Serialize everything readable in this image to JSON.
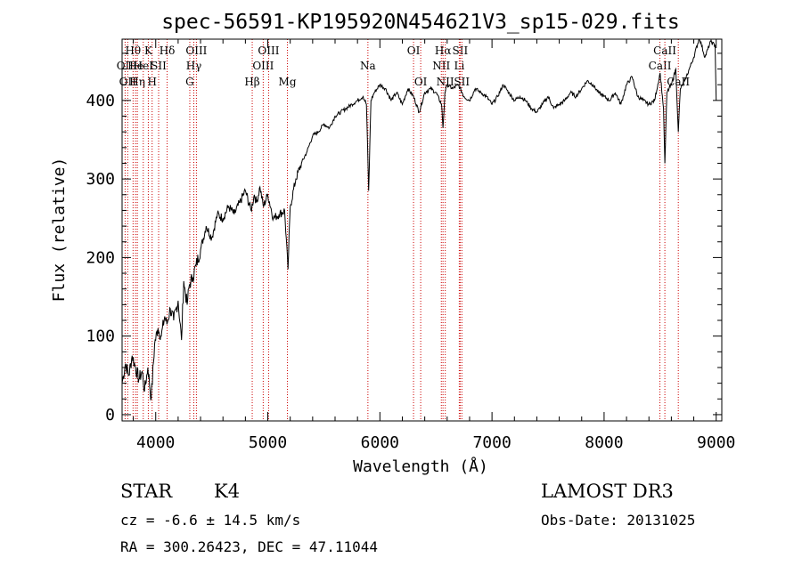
{
  "chart_data": {
    "type": "line",
    "title": "spec-56591-KP195920N454621V3_sp15-029.fits",
    "xlabel": "Wavelength (Å)",
    "ylabel": "Flux (relative)",
    "xlim": [
      3700,
      9050
    ],
    "ylim": [
      -8,
      478
    ],
    "xticks": [
      4000,
      5000,
      6000,
      7000,
      8000,
      9000
    ],
    "yticks": [
      0,
      100,
      200,
      300,
      400
    ],
    "grid": false,
    "series": [
      {
        "x": [
          3700,
          3730,
          3760,
          3790,
          3820,
          3850,
          3880,
          3900,
          3930,
          3960,
          3990,
          4020,
          4050,
          4080,
          4100,
          4130,
          4160,
          4200,
          4230,
          4250,
          4280,
          4300,
          4330,
          4360,
          4400,
          4450,
          4500,
          4550,
          4600,
          4650,
          4700,
          4750,
          4800,
          4850,
          4880,
          4900,
          4930,
          4960,
          5000,
          5050,
          5100,
          5150,
          5180,
          5200,
          5250,
          5300,
          5350,
          5400,
          5450,
          5500,
          5550,
          5600,
          5650,
          5700,
          5750,
          5800,
          5850,
          5880,
          5900,
          5920,
          5950,
          6000,
          6050,
          6100,
          6150,
          6200,
          6250,
          6300,
          6350,
          6400,
          6450,
          6500,
          6550,
          6563,
          6580,
          6600,
          6650,
          6700,
          6750,
          6800,
          6850,
          6900,
          6950,
          7000,
          7050,
          7100,
          7150,
          7200,
          7250,
          7300,
          7350,
          7400,
          7450,
          7500,
          7550,
          7600,
          7650,
          7700,
          7750,
          7800,
          7850,
          7900,
          7950,
          8000,
          8050,
          8100,
          8150,
          8200,
          8250,
          8300,
          8350,
          8400,
          8450,
          8500,
          8530,
          8542,
          8560,
          8600,
          8640,
          8662,
          8680,
          8720,
          8760,
          8800,
          8850,
          8900,
          8950,
          8990,
          9000
        ],
        "y": [
          40,
          65,
          50,
          75,
          60,
          45,
          55,
          30,
          60,
          20,
          90,
          110,
          100,
          125,
          115,
          135,
          120,
          145,
          95,
          170,
          140,
          165,
          175,
          190,
          210,
          240,
          225,
          255,
          250,
          265,
          255,
          270,
          285,
          260,
          280,
          270,
          290,
          265,
          280,
          250,
          255,
          260,
          185,
          265,
          300,
          320,
          335,
          355,
          360,
          370,
          365,
          380,
          385,
          390,
          395,
          400,
          405,
          395,
          285,
          400,
          410,
          420,
          415,
          400,
          410,
          395,
          415,
          405,
          385,
          410,
          415,
          410,
          395,
          365,
          410,
          420,
          415,
          420,
          405,
          400,
          415,
          410,
          405,
          395,
          405,
          420,
          410,
          400,
          405,
          400,
          390,
          385,
          395,
          405,
          390,
          395,
          400,
          410,
          405,
          415,
          425,
          420,
          410,
          405,
          400,
          410,
          395,
          420,
          430,
          405,
          400,
          395,
          400,
          435,
          390,
          320,
          410,
          420,
          440,
          360,
          415,
          425,
          440,
          455,
          480,
          455,
          475,
          470,
          400
        ]
      }
    ],
    "line_markers": [
      {
        "w": 3727,
        "label": "OII",
        "row": 1
      },
      {
        "w": 3750,
        "label": "OII",
        "row": 2
      },
      {
        "w": 3798,
        "label": "Hθ",
        "row": 0
      },
      {
        "w": 3820,
        "label": "He",
        "row": 1
      },
      {
        "w": 3836,
        "label": "Hη",
        "row": 2
      },
      {
        "w": 3889,
        "label": "HeI",
        "row": 1
      },
      {
        "w": 3934,
        "label": "K",
        "row": 0
      },
      {
        "w": 3968,
        "label": "H",
        "row": 2
      },
      {
        "w": 4026,
        "label": "SII",
        "row": 1
      },
      {
        "w": 4102,
        "label": "Hδ",
        "row": 0
      },
      {
        "w": 4304,
        "label": "G",
        "row": 2
      },
      {
        "w": 4340,
        "label": "Hγ",
        "row": 1
      },
      {
        "w": 4363,
        "label": "OIII",
        "row": 0
      },
      {
        "w": 4861,
        "label": "Hβ",
        "row": 2
      },
      {
        "w": 4959,
        "label": "OIII",
        "row": 1
      },
      {
        "w": 5007,
        "label": "OIII",
        "row": 0
      },
      {
        "w": 5175,
        "label": "Mg",
        "row": 2
      },
      {
        "w": 5893,
        "label": "Na",
        "row": 1
      },
      {
        "w": 6300,
        "label": "OI",
        "row": 0
      },
      {
        "w": 6364,
        "label": "OI",
        "row": 2
      },
      {
        "w": 6548,
        "label": "NII",
        "row": 1
      },
      {
        "w": 6563,
        "label": "Hα",
        "row": 0
      },
      {
        "w": 6583,
        "label": "NII",
        "row": 2
      },
      {
        "w": 6708,
        "label": "Li",
        "row": 1
      },
      {
        "w": 6716,
        "label": "SII",
        "row": 0
      },
      {
        "w": 6731,
        "label": "SII",
        "row": 2
      },
      {
        "w": 8498,
        "label": "CaII",
        "row": 1
      },
      {
        "w": 8542,
        "label": "CaII",
        "row": 0
      },
      {
        "w": 8662,
        "label": "CaII",
        "row": 2
      }
    ]
  },
  "info": {
    "object_class": "STAR",
    "subclass": "K4",
    "survey": "LAMOST DR3",
    "redshift": "cz = -6.6 ± 14.5 km/s",
    "obs_date": "Obs-Date: 20131025",
    "coords": "RA = 300.26423, DEC =  47.11044"
  },
  "colors": {
    "spectrum": "#000000",
    "line_markers": "#cc0000",
    "axes": "#000000"
  }
}
